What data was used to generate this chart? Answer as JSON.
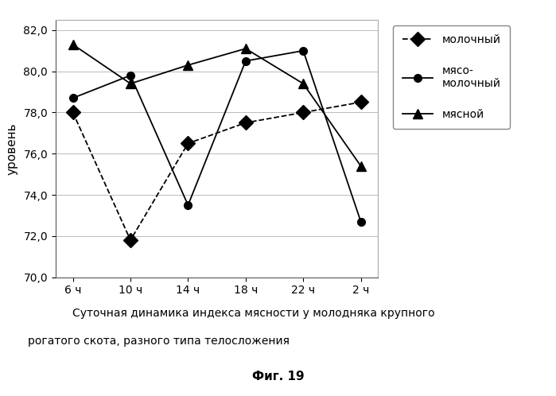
{
  "x_labels": [
    "6 ч",
    "10 ч",
    "14 ч",
    "18 ч",
    "22 ч",
    "2 ч"
  ],
  "x_positions": [
    0,
    1,
    2,
    3,
    4,
    5
  ],
  "molochny": [
    78.0,
    71.8,
    76.5,
    77.5,
    78.0,
    78.5
  ],
  "myaso_molochny": [
    78.7,
    79.8,
    73.5,
    80.5,
    81.0,
    72.7
  ],
  "myasnoy": [
    81.3,
    79.4,
    80.3,
    81.1,
    79.4,
    75.4
  ],
  "ylim": [
    70.0,
    82.5
  ],
  "yticks": [
    70.0,
    72.0,
    74.0,
    76.0,
    78.0,
    80.0,
    82.0
  ],
  "ylabel": "уровень",
  "legend_labels": [
    "молочный",
    "мясо-\nмолочный",
    "мясной"
  ],
  "caption_line1": "Суточная динамика индекса мясности у молодняка крупного",
  "caption_line2": "рогатого скота, разного типа телосложения",
  "caption_line3": "Фиг. 19",
  "bg_color": "#ffffff",
  "plot_bg_color": "#ffffff",
  "line_color": "#000000"
}
